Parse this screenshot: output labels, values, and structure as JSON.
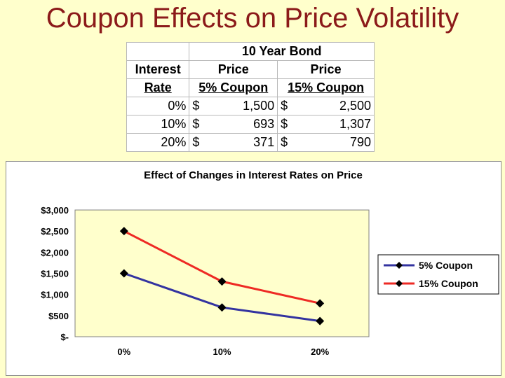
{
  "slide": {
    "title": "Coupon Effects on Price Volatility"
  },
  "table": {
    "title": "10 Year Bond",
    "headers_row1": [
      "Interest",
      "Price",
      "Price"
    ],
    "headers_row2": [
      "Rate",
      "5% Coupon",
      "15% Coupon"
    ],
    "currency_symbol": "$",
    "rows": [
      {
        "rate": "0%",
        "price_5": "1,500",
        "price_15": "2,500"
      },
      {
        "rate": "10%",
        "price_5": "693",
        "price_15": "1,307"
      },
      {
        "rate": "20%",
        "price_5": "371",
        "price_15": "790"
      }
    ]
  },
  "chart_data": {
    "type": "line",
    "title": "Effect of Changes in Interest Rates on Price",
    "categories": [
      "0%",
      "10%",
      "20%"
    ],
    "series": [
      {
        "name": "5% Coupon",
        "values": [
          1500,
          693,
          371
        ],
        "color": "#3333A0"
      },
      {
        "name": "15% Coupon",
        "values": [
          2500,
          1307,
          790
        ],
        "color": "#EE2A24"
      }
    ],
    "ylim": [
      0,
      3000
    ],
    "yticks": [
      0,
      500,
      1000,
      1500,
      2000,
      2500,
      3000
    ],
    "ytick_labels": [
      "$-",
      "$500",
      "$1,000",
      "$1,500",
      "$2,000",
      "$2,500",
      "$3,000"
    ],
    "grid": false,
    "plot_background": "#FFFFCC",
    "legend_position": "right",
    "marker": "diamond"
  }
}
